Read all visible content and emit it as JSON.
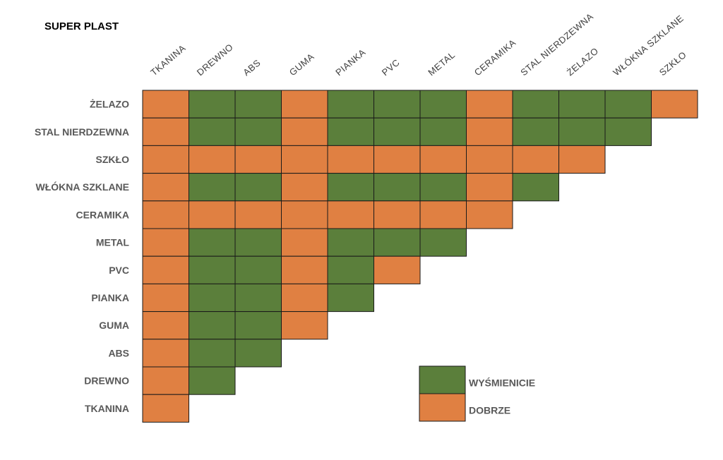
{
  "chart_data": {
    "type": "heatmap",
    "title": "SUPER PLAST",
    "columns": [
      "TKANINA",
      "DREWNO",
      "ABS",
      "GUMA",
      "PIANKA",
      "PVC",
      "METAL",
      "CERAMIKA",
      "STAL NIERDZEWNA",
      "ŻELAZO",
      "WŁÓKNA SZKLANE",
      "SZKŁO"
    ],
    "rows": [
      "ŻELAZO",
      "STAL NIERDZEWNA",
      "SZKŁO",
      "WŁÓKNA SZKLANE",
      "CERAMIKA",
      "METAL",
      "PVC",
      "PIANKA",
      "GUMA",
      "ABS",
      "DREWNO",
      "TKANINA"
    ],
    "values": [
      [
        "D",
        "W",
        "W",
        "D",
        "W",
        "W",
        "W",
        "D",
        "W",
        "W",
        "W",
        "D"
      ],
      [
        "D",
        "W",
        "W",
        "D",
        "W",
        "W",
        "W",
        "D",
        "W",
        "W",
        "W"
      ],
      [
        "D",
        "D",
        "D",
        "D",
        "D",
        "D",
        "D",
        "D",
        "D",
        "D"
      ],
      [
        "D",
        "W",
        "W",
        "D",
        "W",
        "W",
        "W",
        "D",
        "W"
      ],
      [
        "D",
        "D",
        "D",
        "D",
        "D",
        "D",
        "D",
        "D"
      ],
      [
        "D",
        "W",
        "W",
        "D",
        "W",
        "W",
        "W"
      ],
      [
        "D",
        "W",
        "W",
        "D",
        "W",
        "D"
      ],
      [
        "D",
        "W",
        "W",
        "D",
        "W"
      ],
      [
        "D",
        "W",
        "W",
        "D"
      ],
      [
        "D",
        "W",
        "W"
      ],
      [
        "D",
        "W"
      ],
      [
        "D"
      ]
    ],
    "legend": [
      {
        "key": "W",
        "label": "WYŚMIENICIE",
        "color": "#5b7f3b"
      },
      {
        "key": "D",
        "label": "DOBRZE",
        "color": "#e08042"
      }
    ]
  }
}
